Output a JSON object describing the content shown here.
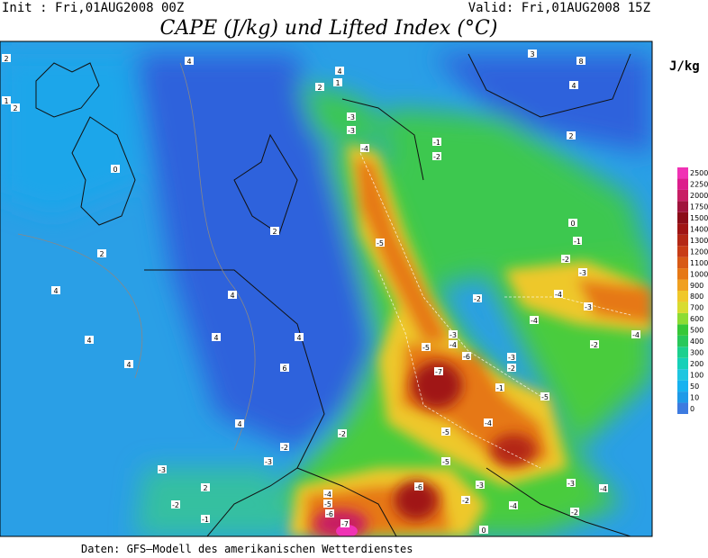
{
  "header": {
    "init": "Init : Fri,01AUG2008 00Z",
    "valid": "Valid: Fri,01AUG2008 15Z",
    "title": "CAPE (J/kg) und Lifted Index (°C)",
    "unit": "J/kg"
  },
  "colorbar": {
    "levels": [
      0,
      10,
      50,
      100,
      200,
      300,
      400,
      500,
      600,
      700,
      800,
      900,
      1000,
      1100,
      1200,
      1300,
      1400,
      1500,
      1750,
      2000,
      2250,
      2500
    ],
    "colors": [
      "#3d7be0",
      "#1f9ae8",
      "#17b2f0",
      "#1ec6e0",
      "#16d0b8",
      "#1cd08e",
      "#28c85a",
      "#36c838",
      "#8cdc34",
      "#d8dc30",
      "#f0c82a",
      "#f0a020",
      "#e67816",
      "#d85a16",
      "#c83c16",
      "#b42816",
      "#a01414",
      "#8c0c18",
      "#a0143c",
      "#c81e64",
      "#dc1e8c",
      "#f032b4"
    ]
  },
  "contour_labels": [
    "4",
    "2",
    "1",
    "2",
    "0",
    "2",
    "4",
    "4",
    "4",
    "2",
    "4",
    "4",
    "4",
    "6",
    "4",
    "-2",
    "-2",
    "-3",
    "-3",
    "2",
    "-2",
    "-1",
    "-4",
    "-5",
    "-3",
    "-3",
    "-1",
    "-2",
    "1",
    "2",
    "4",
    "8",
    "3",
    "4",
    "2",
    "0",
    "-1",
    "-2",
    "-3",
    "-4",
    "-3",
    "-4",
    "-2",
    "-2",
    "-4",
    "-5",
    "-3",
    "-4",
    "-6",
    "-7",
    "-3",
    "-2",
    "-1",
    "-5",
    "-4",
    "-5",
    "-5",
    "-3",
    "-4",
    "-2",
    "-6",
    "-3",
    "-2",
    "-4",
    "-4",
    "-5",
    "-6",
    "-7",
    "0"
  ],
  "footer": "Daten: GFS–Modell des amerikanischen Wetterdienstes"
}
